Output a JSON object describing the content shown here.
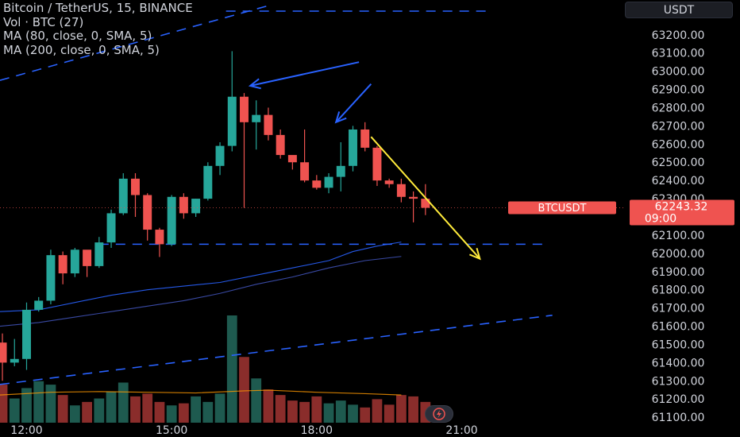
{
  "legend": {
    "title": "Bitcoin / TetherUS, 15, BINANCE",
    "volume": "Vol · BTC (27)",
    "ma1": "MA (80, close, 0, SMA, 5)",
    "ma2": "MA (200, close, 0, SMA, 5)"
  },
  "currency": "USDT",
  "price_tag": {
    "symbol": "BTCUSDT",
    "price": "62243.32",
    "countdown": "09:00"
  },
  "colors": {
    "up": "#26a69a",
    "down": "#ef5350",
    "ma_fast": "#2962ff",
    "trend": "#2962ff",
    "arrow_yellow": "#ffeb3b",
    "vol_up": "#1e5a4f",
    "vol_down": "#8a2d2b",
    "vol_ma": "#ff9800"
  },
  "chart_data": {
    "type": "candlestick",
    "symbol": "BTCUSDT",
    "interval": "15",
    "y_ticks": [
      "63200.00",
      "63100.00",
      "63000.00",
      "62900.00",
      "62800.00",
      "62700.00",
      "62600.00",
      "62500.00",
      "62400.00",
      "62300.00",
      "62200.00",
      "62100.00",
      "62000.00",
      "61900.00",
      "61800.00",
      "61700.00",
      "61600.00",
      "61500.00",
      "61400.00",
      "61300.00",
      "61200.00",
      "61100.00"
    ],
    "x_ticks": [
      {
        "label": "12:00",
        "index": 2
      },
      {
        "label": "15:00",
        "index": 14
      },
      {
        "label": "18:00",
        "index": 26
      },
      {
        "label": "21:00",
        "index": 38
      }
    ],
    "ylim": [
      61070,
      63330
    ],
    "xlim": [
      -0.2,
      51.5
    ],
    "candles": [
      {
        "o": 61510,
        "h": 61560,
        "l": 61300,
        "c": 61400,
        "v": 55
      },
      {
        "o": 61400,
        "h": 61530,
        "l": 61380,
        "c": 61420,
        "v": 35
      },
      {
        "o": 61420,
        "h": 61730,
        "l": 61360,
        "c": 61690,
        "v": 50
      },
      {
        "o": 61690,
        "h": 61760,
        "l": 61680,
        "c": 61740,
        "v": 60
      },
      {
        "o": 61740,
        "h": 62020,
        "l": 61720,
        "c": 61990,
        "v": 55
      },
      {
        "o": 61990,
        "h": 62010,
        "l": 61830,
        "c": 61890,
        "v": 40
      },
      {
        "o": 61890,
        "h": 62030,
        "l": 61870,
        "c": 62020,
        "v": 25
      },
      {
        "o": 62020,
        "h": 62000,
        "l": 61870,
        "c": 61930,
        "v": 30
      },
      {
        "o": 61930,
        "h": 62090,
        "l": 61920,
        "c": 62060,
        "v": 35
      },
      {
        "o": 62060,
        "h": 62240,
        "l": 62030,
        "c": 62220,
        "v": 45
      },
      {
        "o": 62220,
        "h": 62440,
        "l": 62210,
        "c": 62410,
        "v": 58
      },
      {
        "o": 62410,
        "h": 62440,
        "l": 62200,
        "c": 62320,
        "v": 38
      },
      {
        "o": 62320,
        "h": 62330,
        "l": 62070,
        "c": 62130,
        "v": 42
      },
      {
        "o": 62130,
        "h": 62140,
        "l": 61980,
        "c": 62050,
        "v": 30
      },
      {
        "o": 62050,
        "h": 62320,
        "l": 62040,
        "c": 62310,
        "v": 25
      },
      {
        "o": 62310,
        "h": 62330,
        "l": 62190,
        "c": 62220,
        "v": 28
      },
      {
        "o": 62220,
        "h": 62300,
        "l": 62200,
        "c": 62300,
        "v": 38
      },
      {
        "o": 62300,
        "h": 62500,
        "l": 62290,
        "c": 62480,
        "v": 30
      },
      {
        "o": 62480,
        "h": 62610,
        "l": 62430,
        "c": 62590,
        "v": 42
      },
      {
        "o": 62590,
        "h": 63110,
        "l": 62560,
        "c": 62860,
        "v": 155
      },
      {
        "o": 62860,
        "h": 62880,
        "l": 62250,
        "c": 62720,
        "v": 95
      },
      {
        "o": 62720,
        "h": 62840,
        "l": 62570,
        "c": 62760,
        "v": 64
      },
      {
        "o": 62760,
        "h": 62800,
        "l": 62620,
        "c": 62650,
        "v": 48
      },
      {
        "o": 62650,
        "h": 62680,
        "l": 62520,
        "c": 62540,
        "v": 40
      },
      {
        "o": 62540,
        "h": 62530,
        "l": 62460,
        "c": 62500,
        "v": 32
      },
      {
        "o": 62500,
        "h": 62680,
        "l": 62390,
        "c": 62400,
        "v": 30
      },
      {
        "o": 62400,
        "h": 62430,
        "l": 62350,
        "c": 62360,
        "v": 38
      },
      {
        "o": 62360,
        "h": 62440,
        "l": 62330,
        "c": 62420,
        "v": 28
      },
      {
        "o": 62420,
        "h": 62610,
        "l": 62340,
        "c": 62480,
        "v": 32
      },
      {
        "o": 62480,
        "h": 62700,
        "l": 62450,
        "c": 62680,
        "v": 26
      },
      {
        "o": 62680,
        "h": 62720,
        "l": 62560,
        "c": 62580,
        "v": 22
      },
      {
        "o": 62580,
        "h": 62590,
        "l": 62370,
        "c": 62400,
        "v": 34
      },
      {
        "o": 62400,
        "h": 62410,
        "l": 62360,
        "c": 62380,
        "v": 26
      },
      {
        "o": 62380,
        "h": 62410,
        "l": 62280,
        "c": 62310,
        "v": 40
      },
      {
        "o": 62310,
        "h": 62340,
        "l": 62170,
        "c": 62300,
        "v": 38
      },
      {
        "o": 62300,
        "h": 62380,
        "l": 62210,
        "c": 62250,
        "v": 30
      }
    ],
    "ma_fast_points": [
      [
        -0.2,
        61680
      ],
      [
        3,
        61690
      ],
      [
        6,
        61730
      ],
      [
        9,
        61770
      ],
      [
        12,
        61800
      ],
      [
        15,
        61820
      ],
      [
        18,
        61840
      ],
      [
        21,
        61880
      ],
      [
        24,
        61920
      ],
      [
        27,
        61960
      ],
      [
        29,
        62010
      ],
      [
        31,
        62040
      ],
      [
        33,
        62062
      ]
    ],
    "ma_slow_points": [
      [
        -0.2,
        61600
      ],
      [
        3,
        61620
      ],
      [
        6,
        61650
      ],
      [
        9,
        61680
      ],
      [
        12,
        61710
      ],
      [
        15,
        61740
      ],
      [
        18,
        61780
      ],
      [
        21,
        61830
      ],
      [
        24,
        61870
      ],
      [
        27,
        61920
      ],
      [
        30,
        61960
      ],
      [
        33,
        61983
      ]
    ],
    "volume_ma_points": [
      [
        -0.2,
        40
      ],
      [
        4,
        44
      ],
      [
        8,
        45
      ],
      [
        12,
        44
      ],
      [
        16,
        43
      ],
      [
        20,
        46
      ],
      [
        22,
        47
      ],
      [
        26,
        44
      ],
      [
        30,
        42
      ],
      [
        33,
        40
      ]
    ],
    "lines": [
      {
        "kind": "dashed",
        "color": "#2962ff",
        "points": [
          [
            -0.2,
            62950
          ],
          [
            22.0,
            63360
          ]
        ]
      },
      {
        "kind": "dashed",
        "color": "#2962ff",
        "points": [
          [
            18.5,
            63330
          ],
          [
            40.5,
            63330
          ]
        ]
      },
      {
        "kind": "dashed",
        "color": "#2962ff",
        "points": [
          [
            -0.2,
            61280
          ],
          [
            45.5,
            61660
          ]
        ]
      },
      {
        "kind": "dashed",
        "color": "#2962ff",
        "points": [
          [
            8,
            62050
          ],
          [
            45,
            62050
          ]
        ]
      },
      {
        "kind": "arrow",
        "color": "#2962ff",
        "points": [
          [
            29.5,
            63050
          ],
          [
            20.5,
            62920
          ]
        ]
      },
      {
        "kind": "arrow",
        "color": "#2962ff",
        "points": [
          [
            30.5,
            62930
          ],
          [
            27.6,
            62720
          ]
        ]
      },
      {
        "kind": "arrow",
        "color": "#ffeb3b",
        "points": [
          [
            30.5,
            62640
          ],
          [
            39.5,
            61970
          ]
        ]
      }
    ]
  }
}
